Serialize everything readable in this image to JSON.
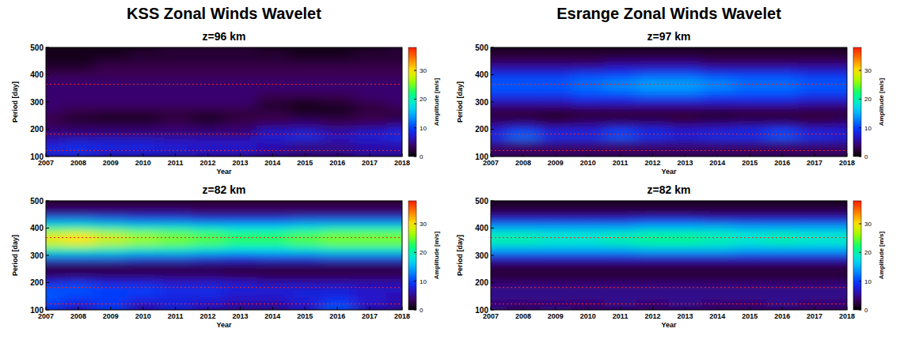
{
  "chart_data": [
    {
      "type": "heatmap",
      "title": "KSS Zonal Winds Wavelet",
      "subtitle": "z=96 km",
      "x_label": "Year",
      "y_label": "Period [day]",
      "x": [
        2007,
        2008,
        2009,
        2010,
        2011,
        2012,
        2013,
        2014,
        2015,
        2016,
        2017,
        2018
      ],
      "y": [
        100,
        125,
        150,
        175,
        200,
        225,
        250,
        275,
        300,
        325,
        350,
        375,
        400,
        425,
        450,
        475,
        500
      ],
      "xlim": [
        2007,
        2018
      ],
      "ylim": [
        100,
        500
      ],
      "xticks": [
        2007,
        2008,
        2009,
        2010,
        2011,
        2012,
        2013,
        2014,
        2015,
        2016,
        2017,
        2018
      ],
      "yticks": [
        100,
        200,
        300,
        400,
        500
      ],
      "reference_lines": [
        365,
        182,
        122
      ],
      "colorbar": {
        "label": "Amplitude [m/s]",
        "range": [
          0,
          38
        ],
        "ticks": [
          0,
          10,
          20,
          30
        ]
      },
      "values": [
        [
          6,
          7,
          6,
          6,
          5,
          5,
          5,
          4,
          4,
          4,
          5,
          5
        ],
        [
          9,
          9,
          8,
          8,
          8,
          7,
          7,
          6,
          5,
          5,
          6,
          6
        ],
        [
          7,
          8,
          8,
          8,
          7,
          7,
          7,
          6,
          5,
          5,
          6,
          6
        ],
        [
          5,
          5,
          5,
          5,
          5,
          5,
          5,
          8,
          9,
          7,
          8,
          9
        ],
        [
          4,
          4,
          4,
          4,
          4,
          4,
          4,
          6,
          6,
          5,
          6,
          7
        ],
        [
          3,
          2,
          2,
          2,
          3,
          2,
          3,
          3,
          4,
          3,
          3,
          4
        ],
        [
          3,
          2,
          1,
          1,
          2,
          1,
          2,
          3,
          2,
          2,
          3,
          2
        ],
        [
          4,
          3,
          3,
          3,
          3,
          3,
          3,
          2,
          1,
          1,
          2,
          3
        ],
        [
          4,
          4,
          4,
          4,
          4,
          4,
          4,
          2,
          1,
          2,
          3,
          4
        ],
        [
          4,
          4,
          4,
          4,
          4,
          4,
          4,
          3,
          3,
          3,
          4,
          4
        ],
        [
          4,
          4,
          4,
          4,
          4,
          4,
          4,
          4,
          4,
          4,
          4,
          4
        ],
        [
          4,
          4,
          4,
          4,
          4,
          4,
          4,
          4,
          4,
          4,
          4,
          4
        ],
        [
          3,
          3,
          3,
          3,
          3,
          3,
          3,
          3,
          3,
          3,
          3,
          3
        ],
        [
          2,
          2,
          3,
          3,
          3,
          3,
          3,
          3,
          3,
          3,
          3,
          3
        ],
        [
          1,
          1,
          2,
          2,
          2,
          2,
          2,
          2,
          2,
          2,
          2,
          2
        ],
        [
          1,
          1,
          1,
          2,
          2,
          2,
          2,
          2,
          1,
          1,
          2,
          2
        ],
        [
          1,
          1,
          1,
          1,
          2,
          2,
          2,
          1,
          1,
          1,
          1,
          2
        ]
      ]
    },
    {
      "type": "heatmap",
      "title": "Esrange Zonal Winds Wavelet",
      "subtitle": "z=97 km",
      "x_label": "Year",
      "y_label": "Period [day]",
      "x": [
        2007,
        2008,
        2009,
        2010,
        2011,
        2012,
        2013,
        2014,
        2015,
        2016,
        2017,
        2018
      ],
      "y": [
        100,
        125,
        150,
        175,
        200,
        225,
        250,
        275,
        300,
        325,
        350,
        375,
        400,
        425,
        450,
        475,
        500
      ],
      "xlim": [
        2007,
        2018
      ],
      "ylim": [
        100,
        500
      ],
      "xticks": [
        2007,
        2008,
        2009,
        2010,
        2011,
        2012,
        2013,
        2014,
        2015,
        2016,
        2017,
        2018
      ],
      "yticks": [
        100,
        200,
        300,
        400,
        500
      ],
      "reference_lines": [
        365,
        182,
        122
      ],
      "colorbar": {
        "label": "Amplitude [m/s]",
        "range": [
          0,
          38
        ],
        "ticks": [
          0,
          10,
          20,
          30
        ]
      },
      "values": [
        [
          4,
          4,
          4,
          4,
          4,
          4,
          4,
          4,
          4,
          4,
          4,
          4
        ],
        [
          3,
          3,
          3,
          3,
          3,
          3,
          3,
          3,
          3,
          3,
          3,
          3
        ],
        [
          5,
          5,
          5,
          5,
          5,
          5,
          5,
          5,
          5,
          5,
          5,
          5
        ],
        [
          9,
          12,
          9,
          9,
          11,
          9,
          8,
          9,
          9,
          11,
          9,
          8
        ],
        [
          7,
          9,
          7,
          7,
          9,
          8,
          7,
          7,
          8,
          9,
          7,
          7
        ],
        [
          4,
          4,
          3,
          4,
          4,
          4,
          3,
          4,
          4,
          4,
          3,
          4
        ],
        [
          2,
          2,
          1,
          2,
          2,
          2,
          2,
          1,
          2,
          2,
          2,
          2
        ],
        [
          3,
          3,
          3,
          3,
          3,
          3,
          3,
          3,
          3,
          3,
          3,
          3
        ],
        [
          6,
          6,
          6,
          7,
          7,
          7,
          7,
          7,
          7,
          7,
          6,
          6
        ],
        [
          9,
          9,
          9,
          10,
          10,
          11,
          11,
          10,
          10,
          10,
          9,
          9
        ],
        [
          11,
          11,
          11,
          12,
          13,
          14,
          14,
          13,
          12,
          12,
          11,
          11
        ],
        [
          11,
          11,
          11,
          12,
          13,
          14,
          14,
          13,
          12,
          12,
          11,
          11
        ],
        [
          9,
          9,
          9,
          10,
          10,
          11,
          11,
          10,
          10,
          10,
          9,
          9
        ],
        [
          6,
          6,
          6,
          6,
          7,
          7,
          7,
          6,
          6,
          6,
          6,
          6
        ],
        [
          3,
          3,
          3,
          3,
          4,
          4,
          4,
          3,
          3,
          3,
          3,
          3
        ],
        [
          2,
          2,
          2,
          2,
          2,
          2,
          2,
          2,
          2,
          2,
          2,
          2
        ],
        [
          1,
          1,
          1,
          1,
          1,
          1,
          1,
          1,
          1,
          1,
          1,
          1
        ]
      ]
    },
    {
      "type": "heatmap",
      "subtitle": "z=82 km",
      "x_label": "Year",
      "y_label": "Period [day]",
      "x": [
        2007,
        2008,
        2009,
        2010,
        2011,
        2012,
        2013,
        2014,
        2015,
        2016,
        2017,
        2018
      ],
      "y": [
        100,
        125,
        150,
        175,
        200,
        225,
        250,
        275,
        300,
        325,
        350,
        375,
        400,
        425,
        450,
        475,
        500
      ],
      "xlim": [
        2007,
        2018
      ],
      "ylim": [
        100,
        500
      ],
      "xticks": [
        2007,
        2008,
        2009,
        2010,
        2011,
        2012,
        2013,
        2014,
        2015,
        2016,
        2017,
        2018
      ],
      "yticks": [
        100,
        200,
        300,
        400,
        500
      ],
      "reference_lines": [
        365,
        182,
        122
      ],
      "colorbar": {
        "label": "Amplitude [m/s]",
        "range": [
          0,
          38
        ],
        "ticks": [
          0,
          10,
          20,
          30
        ]
      },
      "values": [
        [
          9,
          7,
          10,
          6,
          8,
          6,
          5,
          5,
          7,
          11,
          6,
          5
        ],
        [
          10,
          8,
          9,
          7,
          8,
          7,
          6,
          6,
          7,
          10,
          7,
          6
        ],
        [
          11,
          10,
          10,
          9,
          8,
          8,
          7,
          7,
          8,
          8,
          7,
          6
        ],
        [
          11,
          11,
          10,
          10,
          9,
          9,
          8,
          8,
          8,
          8,
          7,
          7
        ],
        [
          8,
          9,
          8,
          8,
          7,
          7,
          7,
          6,
          6,
          6,
          6,
          6
        ],
        [
          4,
          4,
          4,
          4,
          4,
          4,
          3,
          3,
          3,
          3,
          3,
          3
        ],
        [
          2,
          2,
          2,
          2,
          2,
          2,
          2,
          2,
          2,
          2,
          2,
          2
        ],
        [
          5,
          5,
          5,
          5,
          5,
          5,
          5,
          5,
          5,
          5,
          5,
          5
        ],
        [
          13,
          13,
          13,
          12,
          12,
          11,
          10,
          11,
          11,
          12,
          12,
          12
        ],
        [
          22,
          22,
          21,
          20,
          20,
          19,
          18,
          18,
          19,
          20,
          20,
          20
        ],
        [
          29,
          30,
          28,
          26,
          25,
          24,
          23,
          23,
          24,
          25,
          25,
          25
        ],
        [
          29,
          30,
          28,
          26,
          25,
          24,
          23,
          23,
          24,
          25,
          25,
          25
        ],
        [
          22,
          22,
          21,
          20,
          20,
          19,
          18,
          18,
          19,
          20,
          20,
          20
        ],
        [
          14,
          14,
          13,
          12,
          12,
          11,
          11,
          11,
          12,
          12,
          12,
          12
        ],
        [
          6,
          6,
          6,
          6,
          6,
          5,
          5,
          5,
          5,
          5,
          5,
          5
        ],
        [
          3,
          3,
          3,
          3,
          3,
          3,
          3,
          3,
          3,
          3,
          3,
          3
        ],
        [
          2,
          2,
          2,
          2,
          2,
          2,
          2,
          2,
          2,
          2,
          2,
          2
        ]
      ]
    },
    {
      "type": "heatmap",
      "subtitle": "z=82 km",
      "x_label": "Year",
      "y_label": "Period [day]",
      "x": [
        2007,
        2008,
        2009,
        2010,
        2011,
        2012,
        2013,
        2014,
        2015,
        2016,
        2017,
        2018
      ],
      "y": [
        100,
        125,
        150,
        175,
        200,
        225,
        250,
        275,
        300,
        325,
        350,
        375,
        400,
        425,
        450,
        475,
        500
      ],
      "xlim": [
        2007,
        2018
      ],
      "ylim": [
        100,
        500
      ],
      "xticks": [
        2007,
        2008,
        2009,
        2010,
        2011,
        2012,
        2013,
        2014,
        2015,
        2016,
        2017,
        2018
      ],
      "yticks": [
        100,
        200,
        300,
        400,
        500
      ],
      "reference_lines": [
        365,
        182,
        122
      ],
      "colorbar": {
        "label": "Amplitude [m/s]",
        "range": [
          0,
          38
        ],
        "ticks": [
          0,
          10,
          20,
          30
        ]
      },
      "values": [
        [
          5,
          4,
          5,
          4,
          4,
          4,
          4,
          4,
          4,
          4,
          4,
          4
        ],
        [
          4,
          4,
          4,
          4,
          5,
          4,
          5,
          4,
          4,
          5,
          4,
          4
        ],
        [
          5,
          5,
          5,
          5,
          5,
          5,
          5,
          5,
          5,
          5,
          5,
          5
        ],
        [
          5,
          5,
          5,
          5,
          5,
          5,
          5,
          5,
          5,
          5,
          5,
          5
        ],
        [
          4,
          4,
          4,
          4,
          4,
          4,
          4,
          4,
          4,
          4,
          4,
          4
        ],
        [
          2,
          2,
          2,
          2,
          2,
          2,
          2,
          2,
          2,
          2,
          2,
          2
        ],
        [
          2,
          2,
          2,
          2,
          2,
          2,
          2,
          2,
          2,
          2,
          2,
          2
        ],
        [
          4,
          4,
          4,
          4,
          4,
          4,
          4,
          4,
          4,
          4,
          4,
          4
        ],
        [
          9,
          9,
          9,
          9,
          9,
          9,
          9,
          9,
          9,
          9,
          9,
          9
        ],
        [
          15,
          15,
          15,
          15,
          15,
          16,
          16,
          16,
          15,
          15,
          15,
          15
        ],
        [
          20,
          20,
          19,
          19,
          20,
          21,
          21,
          20,
          19,
          20,
          19,
          19
        ],
        [
          20,
          20,
          19,
          19,
          20,
          21,
          21,
          20,
          19,
          20,
          19,
          19
        ],
        [
          15,
          15,
          15,
          15,
          15,
          16,
          16,
          16,
          15,
          15,
          15,
          15
        ],
        [
          9,
          9,
          9,
          9,
          9,
          10,
          10,
          9,
          9,
          9,
          9,
          9
        ],
        [
          4,
          4,
          4,
          4,
          4,
          4,
          4,
          4,
          4,
          4,
          4,
          4
        ],
        [
          2,
          2,
          2,
          2,
          2,
          2,
          2,
          2,
          2,
          2,
          2,
          2
        ],
        [
          1,
          1,
          1,
          1,
          1,
          1,
          1,
          1,
          1,
          1,
          1,
          1
        ]
      ]
    }
  ]
}
